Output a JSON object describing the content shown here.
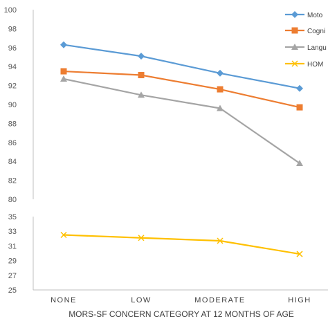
{
  "chart_data": {
    "type": "line",
    "title": "",
    "xlabel": "MORS-SF CONCERN CATEGORY AT 12 MONTHS OF AGE",
    "categories": [
      "NONE",
      "LOW",
      "MODERATE",
      "HIGH"
    ],
    "upper_panel": {
      "ylim": [
        80,
        100
      ],
      "yticks": [
        "80",
        "82",
        "84",
        "86",
        "88",
        "90",
        "92",
        "94",
        "96",
        "98",
        "100"
      ],
      "series": [
        {
          "name": "Moto",
          "color": "#5B9BD5",
          "marker": "diamond",
          "values": [
            96.3,
            95.1,
            93.3,
            91.7
          ]
        },
        {
          "name": "Cogni",
          "color": "#ED7D31",
          "marker": "square",
          "values": [
            93.5,
            93.1,
            91.6,
            89.7
          ]
        },
        {
          "name": "Langu",
          "color": "#A5A5A5",
          "marker": "triangle",
          "values": [
            92.7,
            91.0,
            89.6,
            83.8
          ]
        }
      ]
    },
    "lower_panel": {
      "ylim": [
        25,
        35
      ],
      "yticks": [
        "25",
        "27",
        "29",
        "31",
        "33",
        "35"
      ],
      "series": [
        {
          "name": "HOM",
          "color": "#FFC000",
          "marker": "x",
          "values": [
            32.5,
            32.1,
            31.7,
            29.9
          ]
        }
      ]
    },
    "legend_position": "top-right",
    "grid": false
  }
}
